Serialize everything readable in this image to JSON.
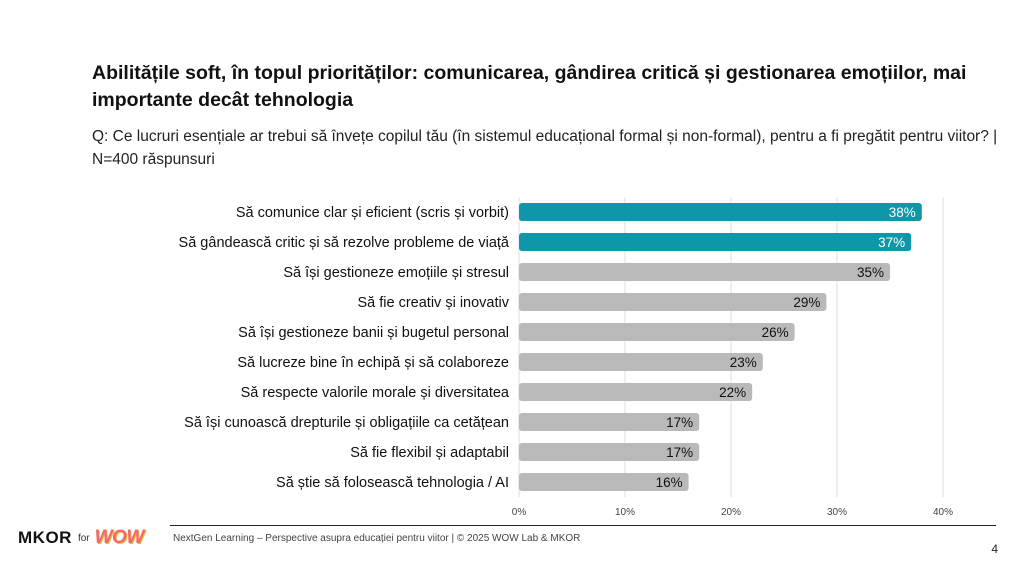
{
  "header": {
    "title": "Abilitățile soft, în topul priorităților: comunicarea, gândirea critică și gestionarea emoțiilor, mai importante decât tehnologia",
    "subtitle": "Q: Ce lucruri esențiale ar trebui să învețe copilul tău (în sistemul educațional formal și non-formal), pentru a fi pregătit pentru viitor? | N=400 răspunsuri"
  },
  "chart_data": {
    "type": "bar",
    "orientation": "horizontal",
    "categories": [
      "Să comunice clar și eficient (scris și vorbit)",
      "Să gândească critic și să rezolve probleme de viață",
      "Să își gestioneze emoțiile și stresul",
      "Să fie creativ și inovativ",
      "Să își gestioneze banii și bugetul personal",
      "Să lucreze bine în echipă și să colaboreze",
      "Să respecte valorile morale și diversitatea",
      "Să își cunoască drepturile și obligațiile ca cetățean",
      "Să fie flexibil și adaptabil",
      "Să știe să folosească tehnologia / AI"
    ],
    "values": [
      38,
      37,
      35,
      29,
      26,
      23,
      22,
      17,
      17,
      16
    ],
    "value_labels": [
      "38%",
      "37%",
      "35%",
      "29%",
      "26%",
      "23%",
      "22%",
      "17%",
      "17%",
      "16%"
    ],
    "xlim": [
      0,
      40
    ],
    "ticks": [
      0,
      10,
      20,
      30,
      40
    ],
    "tick_labels": [
      "0%",
      "10%",
      "20%",
      "30%",
      "40%"
    ],
    "grid": true,
    "colors": {
      "highlight": "#0f96a8",
      "default": "#b9b9b9",
      "grid": "#dddddd"
    },
    "highlight_count": 2
  },
  "footer": {
    "text": "NextGen Learning – Perspective asupra educației pentru viitor | © 2025 WOW Lab & MKOR",
    "page_number": "4"
  },
  "logo": {
    "mkor": "MKOR",
    "for": "for",
    "wow": "WOW",
    "icon": "mkor-wow-logo"
  }
}
